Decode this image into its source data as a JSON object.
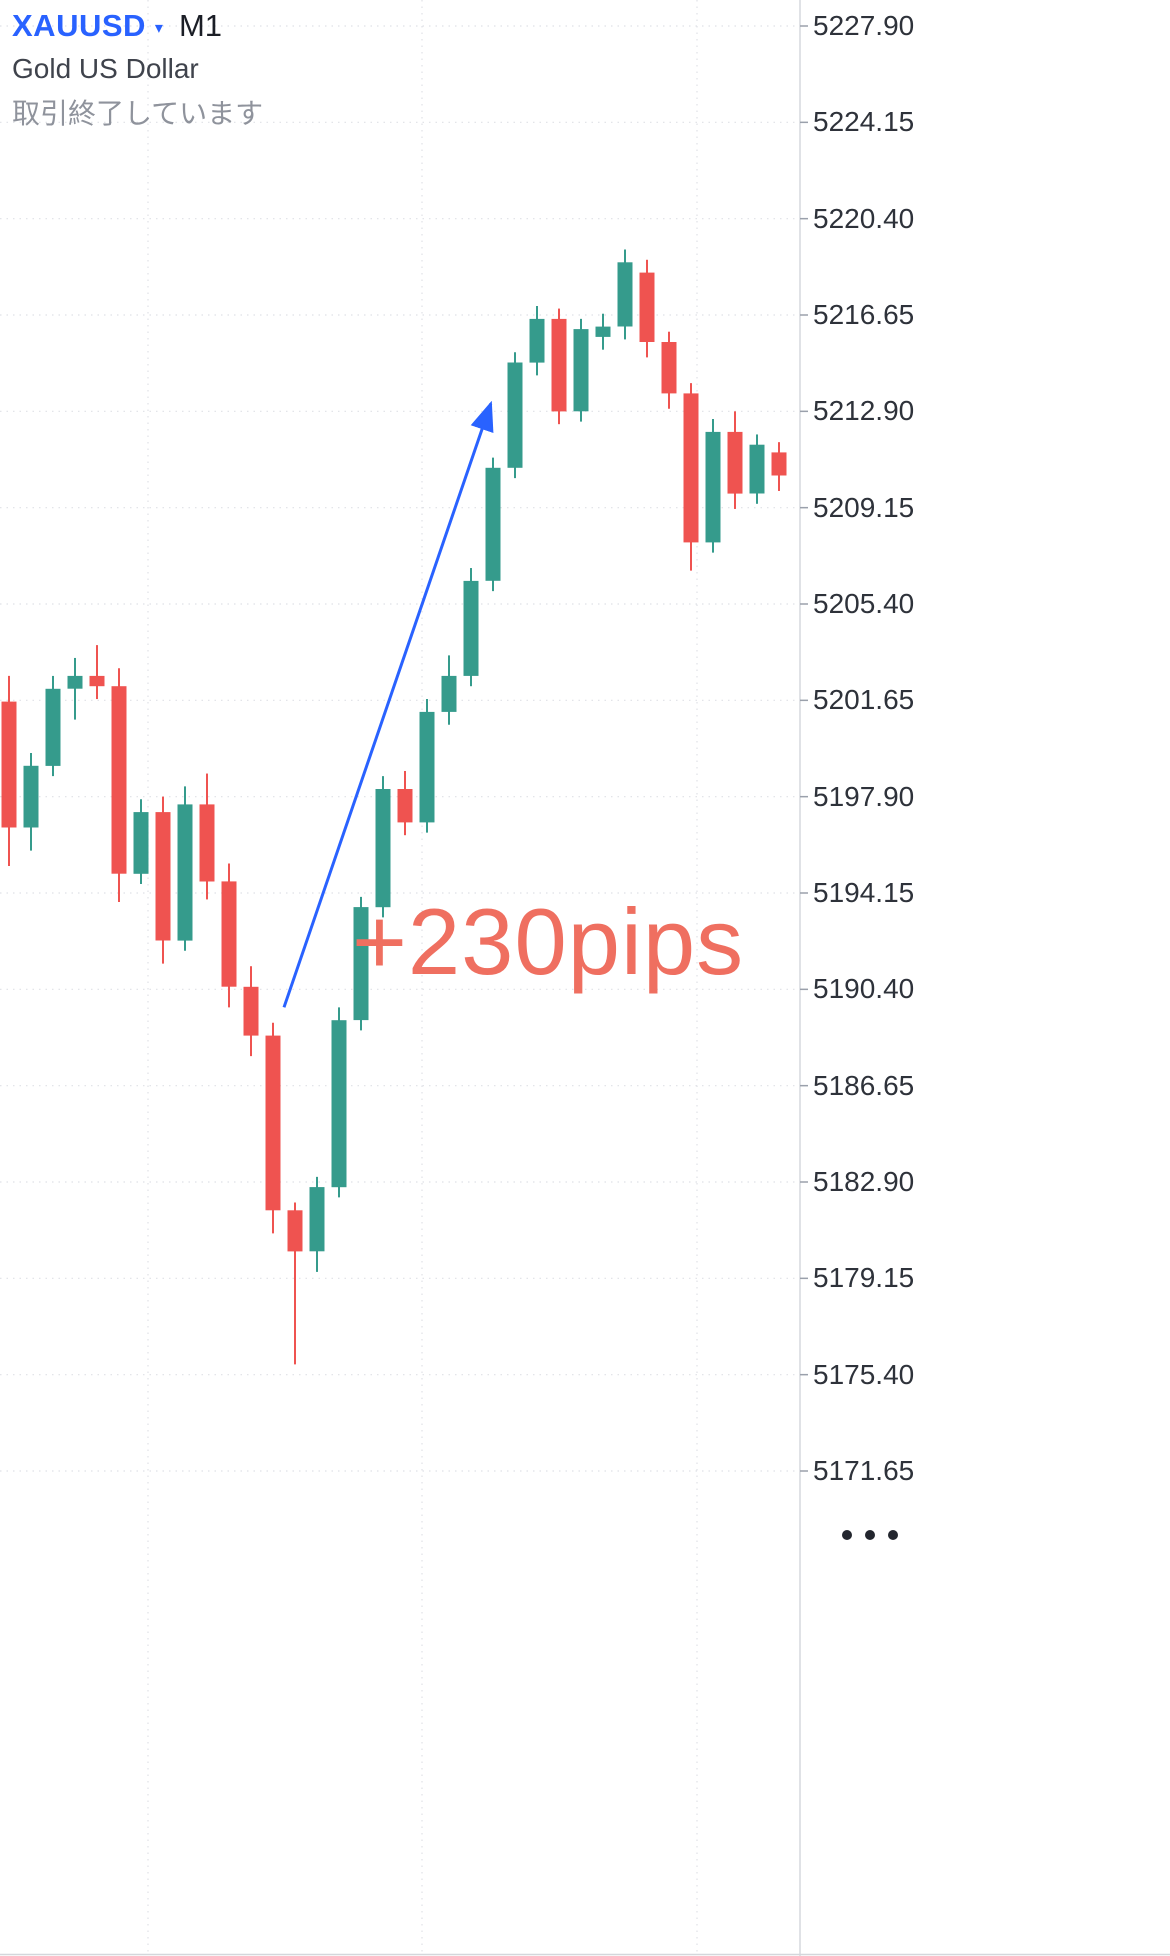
{
  "app": {
    "symbol": "XAUUSD",
    "timeframe": "M1",
    "description": "Gold US Dollar",
    "status": "取引終了しています"
  },
  "icons": {
    "dropdown": "▾"
  },
  "colors": {
    "up": "#359b8c",
    "down": "#ef5350",
    "accent_blue": "#2962ff",
    "annotation_red": "#ef6f60",
    "grid": "#dfe1e6",
    "axis_line": "#d6d9de",
    "axis_tick": "#9aa0ab",
    "axis_text": "#2e323a"
  },
  "chart_data": {
    "type": "candlestick",
    "symbol": "XAUUSD",
    "interval": "M1",
    "y_axis": {
      "max": 5227.9,
      "min": 5171.65,
      "step": 3.75,
      "ticks": [
        "5227.90",
        "5224.15",
        "5220.40",
        "5216.65",
        "5212.90",
        "5209.15",
        "5205.40",
        "5201.65",
        "5197.90",
        "5194.15",
        "5190.40",
        "5186.65",
        "5182.90",
        "5179.15",
        "5175.40",
        "5171.65"
      ]
    },
    "candles_ohlc": [
      [
        5201.6,
        5202.6,
        5195.2,
        5196.7
      ],
      [
        5196.7,
        5199.6,
        5195.8,
        5199.1
      ],
      [
        5199.1,
        5202.6,
        5198.7,
        5202.1
      ],
      [
        5202.1,
        5203.3,
        5200.9,
        5202.6
      ],
      [
        5202.6,
        5203.8,
        5201.7,
        5202.2
      ],
      [
        5202.2,
        5202.9,
        5193.8,
        5194.9
      ],
      [
        5194.9,
        5197.8,
        5194.5,
        5197.3
      ],
      [
        5197.3,
        5197.9,
        5191.4,
        5192.3
      ],
      [
        5192.3,
        5198.3,
        5191.9,
        5197.6
      ],
      [
        5197.6,
        5198.8,
        5193.9,
        5194.6
      ],
      [
        5194.6,
        5195.3,
        5189.7,
        5190.5
      ],
      [
        5190.5,
        5191.3,
        5187.8,
        5188.6
      ],
      [
        5188.6,
        5189.1,
        5180.9,
        5181.8
      ],
      [
        5181.8,
        5182.1,
        5175.8,
        5180.2
      ],
      [
        5180.2,
        5183.1,
        5179.4,
        5182.7
      ],
      [
        5182.7,
        5189.7,
        5182.3,
        5189.2
      ],
      [
        5189.2,
        5194.0,
        5188.8,
        5193.6
      ],
      [
        5193.6,
        5198.7,
        5193.2,
        5198.2
      ],
      [
        5198.2,
        5198.9,
        5196.4,
        5196.9
      ],
      [
        5196.9,
        5201.7,
        5196.5,
        5201.2
      ],
      [
        5201.2,
        5203.4,
        5200.7,
        5202.6
      ],
      [
        5202.6,
        5206.8,
        5202.2,
        5206.3
      ],
      [
        5206.3,
        5211.1,
        5205.9,
        5210.7
      ],
      [
        5210.7,
        5215.2,
        5210.3,
        5214.8
      ],
      [
        5214.8,
        5217.0,
        5214.3,
        5216.5
      ],
      [
        5216.5,
        5216.9,
        5212.4,
        5212.9
      ],
      [
        5212.9,
        5216.5,
        5212.5,
        5216.1
      ],
      [
        5215.8,
        5216.7,
        5215.3,
        5216.2
      ],
      [
        5216.2,
        5219.2,
        5215.7,
        5218.7
      ],
      [
        5218.3,
        5218.8,
        5215.0,
        5215.6
      ],
      [
        5215.6,
        5216.0,
        5213.0,
        5213.6
      ],
      [
        5213.6,
        5214.0,
        5206.7,
        5207.8
      ],
      [
        5207.8,
        5212.6,
        5207.4,
        5212.1
      ],
      [
        5212.1,
        5212.9,
        5209.1,
        5209.7
      ],
      [
        5209.7,
        5212.0,
        5209.3,
        5211.6
      ],
      [
        5211.3,
        5211.7,
        5209.8,
        5210.4
      ]
    ],
    "annotations": {
      "pips_label": "+230pips",
      "arrow": {
        "from": {
          "candle_index": 12.5,
          "price": 5189.7
        },
        "to": {
          "candle_index": 21.9,
          "price": 5213.2
        }
      }
    }
  }
}
